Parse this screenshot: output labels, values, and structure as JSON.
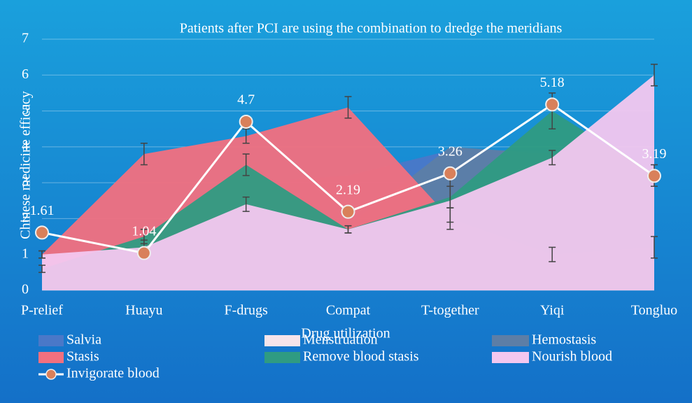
{
  "chart_data": {
    "type": "area",
    "title": "Patients after PCI are using the combination to dredge the meridians",
    "x_label": "Drug utilization",
    "y_label": "Chinese medicine efficacy",
    "categories": [
      "P-relief",
      "Huayu",
      "F-drugs",
      "Compat",
      "T-together",
      "Yiqi",
      "Tongluo"
    ],
    "ylim": [
      0,
      7
    ],
    "yticks": [
      0,
      1,
      2,
      3,
      4,
      5,
      6,
      7
    ],
    "grid": true,
    "series": [
      {
        "name": "Salvia",
        "color": "#4a78c8",
        "values": [
          0.5,
          1.0,
          3.0,
          3.2,
          3.9,
          3.9,
          3.3
        ]
      },
      {
        "name": "Menstruation",
        "color": "#f6e4ea",
        "values": [
          0.9,
          1.1,
          2.4,
          1.6,
          2.6,
          3.5,
          3.0
        ]
      },
      {
        "name": "Hemostasis",
        "color": "#5d7ea6",
        "values": [
          0.8,
          1.2,
          2.8,
          1.8,
          4.0,
          3.8,
          3.2
        ]
      },
      {
        "name": "Stasis",
        "color": "#f2707f",
        "values": [
          1.0,
          3.8,
          4.3,
          5.1,
          2.0,
          1.0,
          1.2
        ],
        "errors": [
          0.1,
          0.3,
          0.2,
          0.3,
          0.3,
          0.2,
          0.3
        ]
      },
      {
        "name": "Remove blood stasis",
        "color": "#2f9b82",
        "values": [
          0.6,
          1.5,
          3.5,
          1.7,
          2.6,
          5.0,
          3.2
        ],
        "errors": [
          0.1,
          0.2,
          0.3,
          0.1,
          0.3,
          0.5,
          0.3
        ]
      },
      {
        "name": "Nourish blood",
        "color": "#f3c7ef",
        "values": [
          1.0,
          1.2,
          2.4,
          1.7,
          2.5,
          3.7,
          6.0
        ],
        "errors": [
          0.1,
          0.2,
          0.2,
          0.1,
          0.6,
          0.2,
          0.3
        ]
      },
      {
        "name": "Invigorate blood",
        "type": "line",
        "color": "#ffffff",
        "marker_color": "#d9805a",
        "values": [
          1.61,
          1.04,
          4.7,
          2.19,
          3.26,
          5.18,
          3.19
        ]
      }
    ]
  }
}
